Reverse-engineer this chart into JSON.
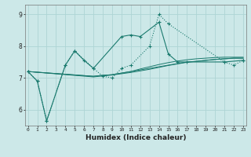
{
  "xlabel": "Humidex (Indice chaleur)",
  "background_color": "#cce8e8",
  "grid_color": "#aed4d4",
  "line_color": "#1a7a6e",
  "x_ticks": [
    0,
    1,
    2,
    3,
    4,
    5,
    6,
    7,
    8,
    9,
    10,
    11,
    12,
    13,
    14,
    15,
    16,
    17,
    18,
    19,
    20,
    21,
    22,
    23
  ],
  "ylim": [
    5.5,
    9.3
  ],
  "xlim": [
    -0.3,
    23.3
  ],
  "yticks": [
    6,
    7,
    8,
    9
  ],
  "series": {
    "line1": {
      "x": [
        0,
        1,
        2,
        4,
        5,
        6,
        7,
        10,
        11,
        12,
        14,
        15,
        16,
        17,
        21,
        23
      ],
      "y": [
        7.2,
        6.9,
        5.65,
        7.4,
        7.85,
        7.55,
        7.3,
        8.3,
        8.35,
        8.3,
        8.75,
        7.75,
        7.5,
        7.5,
        7.5,
        7.55
      ],
      "style": "solid",
      "marker": true
    },
    "line2": {
      "x": [
        0,
        1,
        2,
        4,
        5,
        7,
        8,
        9,
        10,
        11,
        13,
        14,
        15,
        21,
        22,
        23
      ],
      "y": [
        7.2,
        6.9,
        5.65,
        7.4,
        7.85,
        7.3,
        7.05,
        7.0,
        7.3,
        7.4,
        8.0,
        9.0,
        8.7,
        7.5,
        7.4,
        7.55
      ],
      "style": "dotted",
      "marker": true
    },
    "line3": {
      "x": [
        0,
        7,
        8,
        9,
        10,
        11,
        12,
        13,
        14,
        15,
        16,
        17,
        18,
        19,
        20,
        21,
        22,
        23
      ],
      "y": [
        7.2,
        7.05,
        7.08,
        7.1,
        7.15,
        7.2,
        7.25,
        7.3,
        7.35,
        7.4,
        7.45,
        7.5,
        7.52,
        7.55,
        7.58,
        7.6,
        7.62,
        7.62
      ],
      "style": "solid",
      "marker": false
    },
    "line4": {
      "x": [
        0,
        7,
        8,
        9,
        10,
        11,
        12,
        13,
        14,
        15,
        16,
        17,
        18,
        19,
        20,
        21,
        22,
        23
      ],
      "y": [
        7.2,
        7.05,
        7.08,
        7.1,
        7.15,
        7.2,
        7.28,
        7.35,
        7.42,
        7.48,
        7.53,
        7.57,
        7.6,
        7.62,
        7.64,
        7.65,
        7.65,
        7.65
      ],
      "style": "solid",
      "marker": false
    },
    "line5": {
      "x": [
        0,
        7,
        8,
        9,
        10,
        11,
        12,
        13,
        14,
        15,
        16,
        17,
        18,
        19,
        20,
        21,
        22,
        23
      ],
      "y": [
        7.2,
        7.03,
        7.06,
        7.09,
        7.13,
        7.17,
        7.22,
        7.27,
        7.33,
        7.39,
        7.44,
        7.49,
        7.52,
        7.55,
        7.58,
        7.6,
        7.62,
        7.62
      ],
      "style": "solid",
      "marker": false
    }
  }
}
